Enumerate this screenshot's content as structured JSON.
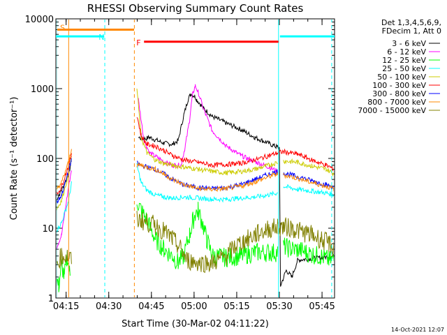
{
  "chart_data": {
    "type": "line",
    "title": "RHESSI Observing Summary Count Rates",
    "xlabel": "Start Time (30-Mar-02 04:11:22)",
    "ylabel": "Count Rate (s⁻¹ detector⁻¹)",
    "x_unit": "minutes after 04:11:22",
    "xlim": [
      0,
      98
    ],
    "ylim": [
      1,
      10000
    ],
    "yscale": "log",
    "x_ticks": [
      {
        "label": "04:15",
        "value": 3.6
      },
      {
        "label": "04:30",
        "value": 18.6
      },
      {
        "label": "04:45",
        "value": 33.6
      },
      {
        "label": "05:00",
        "value": 48.6
      },
      {
        "label": "05:15",
        "value": 63.6
      },
      {
        "label": "05:30",
        "value": 78.6
      },
      {
        "label": "05:45",
        "value": 93.6
      }
    ],
    "y_ticks": [
      {
        "label": "1",
        "value": 1
      },
      {
        "label": "10",
        "value": 10
      },
      {
        "label": "100",
        "value": 100
      },
      {
        "label": "1000",
        "value": 1000
      },
      {
        "label": "10000",
        "value": 10000
      }
    ],
    "legend": {
      "header": [
        "Det 1,3,4,5,6,9,",
        "FDecim 1, Att 0"
      ],
      "placement": "right"
    },
    "series": [
      {
        "name": "3 - 6 keV",
        "color": "#000000",
        "x": [
          0,
          2,
          4.5,
          5.5,
          6,
          28,
          29,
          31,
          33,
          38,
          41,
          43,
          45,
          46.5,
          47.5,
          48.8,
          49.5,
          52,
          55,
          60,
          65,
          70,
          74,
          77,
          78,
          78.6,
          79,
          81,
          83,
          85,
          98
        ],
        "y": [
          25,
          35,
          60,
          95,
          null,
          null,
          200,
          190,
          200,
          165,
          160,
          180,
          420,
          700,
          850,
          780,
          700,
          520,
          400,
          320,
          260,
          200,
          170,
          150,
          145,
          140,
          1.5,
          2.5,
          2,
          3.5,
          4
        ]
      },
      {
        "name": "6 - 12 keV",
        "color": "#ff00ff",
        "x": [
          0,
          2,
          4.5,
          5.5,
          6,
          28,
          29,
          31,
          33,
          38,
          41,
          44,
          45.5,
          47,
          48,
          49,
          50,
          52,
          55,
          60,
          65,
          70,
          75,
          78,
          78.6,
          79,
          98
        ],
        "y": [
          5,
          8,
          40,
          70,
          null,
          null,
          700,
          180,
          120,
          90,
          80,
          80,
          150,
          350,
          800,
          1100,
          900,
          500,
          250,
          150,
          110,
          90,
          75,
          65,
          null,
          null,
          null
        ]
      },
      {
        "name": "12 - 25 keV",
        "color": "#00ff00",
        "x": [
          0,
          1,
          2,
          3,
          4,
          5,
          6,
          28,
          28.5,
          30,
          32,
          35,
          38,
          41,
          43,
          45,
          47,
          48,
          49,
          50,
          51.5,
          53,
          55,
          60,
          65,
          70,
          75,
          78,
          78.6,
          80,
          83,
          85,
          88,
          90,
          93,
          96,
          98
        ],
        "y": [
          2,
          1.5,
          3,
          2,
          4,
          2,
          null,
          null,
          25,
          18,
          13,
          7,
          5,
          4,
          3.2,
          4,
          8,
          12,
          16,
          18,
          12,
          7,
          4,
          3.8,
          4,
          4.5,
          4.5,
          4.5,
          null,
          5.5,
          5,
          5,
          4.5,
          4.2,
          4,
          3.5,
          3.5
        ]
      },
      {
        "name": "25 - 50 keV",
        "color": "#00ffff",
        "x": [
          0,
          2,
          4.5,
          5.5,
          6,
          28,
          28.5,
          30,
          32,
          35,
          38,
          41,
          45,
          50,
          55,
          60,
          65,
          70,
          75,
          78,
          78.6,
          80,
          85,
          90,
          95,
          98
        ],
        "y": [
          9,
          12,
          25,
          45,
          null,
          null,
          80,
          45,
          35,
          30,
          28,
          27,
          28,
          27,
          26,
          26,
          27,
          28,
          30,
          32,
          null,
          40,
          36,
          34,
          32,
          30
        ]
      },
      {
        "name": "50 - 100 keV",
        "color": "#cccc00",
        "x": [
          0,
          2,
          4.5,
          5.5,
          6,
          28,
          28.5,
          30,
          32,
          35,
          38,
          41,
          45,
          50,
          55,
          60,
          65,
          70,
          75,
          78,
          78.6,
          80,
          85,
          90,
          95,
          98
        ],
        "y": [
          18,
          25,
          60,
          110,
          null,
          null,
          1000,
          200,
          120,
          95,
          85,
          80,
          75,
          70,
          65,
          62,
          65,
          70,
          80,
          88,
          null,
          92,
          88,
          78,
          70,
          60
        ]
      },
      {
        "name": "100 - 300 keV",
        "color": "#ff0000",
        "x": [
          0,
          2,
          4.5,
          5.5,
          6,
          28,
          28.5,
          30,
          32,
          35,
          38,
          41,
          45,
          50,
          55,
          60,
          65,
          70,
          75,
          78,
          80,
          85,
          90,
          95,
          98
        ],
        "y": [
          28,
          40,
          80,
          120,
          null,
          null,
          420,
          210,
          160,
          150,
          130,
          110,
          95,
          88,
          80,
          82,
          85,
          95,
          110,
          120,
          125,
          115,
          95,
          80,
          70
        ]
      },
      {
        "name": "300 - 800 keV",
        "color": "#0000ff",
        "x": [
          0,
          2,
          4.5,
          5.5,
          6,
          28,
          28.5,
          30,
          32,
          35,
          38,
          41,
          45,
          50,
          55,
          60,
          65,
          70,
          75,
          78,
          78.6,
          80,
          85,
          90,
          95,
          98
        ],
        "y": [
          22,
          30,
          65,
          100,
          null,
          null,
          85,
          80,
          75,
          70,
          60,
          50,
          42,
          38,
          37,
          38,
          42,
          50,
          60,
          65,
          null,
          62,
          55,
          48,
          42,
          38
        ]
      },
      {
        "name": "800 - 7000 keV",
        "color": "#ff8800",
        "x": [
          0,
          2,
          4.5,
          5.5,
          6,
          28,
          28.5,
          30,
          32,
          35,
          38,
          41,
          45,
          50,
          55,
          60,
          65,
          70,
          75,
          78,
          78.6,
          80,
          85,
          90,
          95,
          98
        ],
        "y": [
          35,
          45,
          90,
          140,
          null,
          null,
          80,
          80,
          75,
          70,
          60,
          50,
          42,
          37,
          36,
          37,
          40,
          46,
          55,
          60,
          null,
          58,
          52,
          45,
          40,
          36
        ]
      },
      {
        "name": "7000 - 15000 keV",
        "color": "#808000",
        "x": [
          0,
          2,
          4,
          5.5,
          6,
          28,
          28.5,
          30,
          32,
          35,
          38,
          41,
          44,
          46,
          50,
          55,
          60,
          63,
          66,
          70,
          74,
          78,
          80,
          83,
          86,
          90,
          93,
          96,
          98
        ],
        "y": [
          3,
          4,
          4,
          3.5,
          null,
          null,
          13,
          13,
          12,
          11,
          9,
          7,
          5,
          3.5,
          3.2,
          3.2,
          4,
          5.5,
          6.5,
          8,
          9.5,
          10.5,
          10.5,
          10,
          9,
          8,
          7,
          6,
          5
        ]
      }
    ],
    "annotations": [
      {
        "label": "S",
        "color": "#ff8800",
        "x_start": 0.5,
        "x_end": 27.5,
        "y": 7000
      },
      {
        "label": "N",
        "color": "#00ffff",
        "x_start": 0,
        "x_end": 17,
        "y": 5600
      },
      {
        "label": "F",
        "color": "#ff0000",
        "x_start": 31,
        "x_end": 78.3,
        "y": 4700
      },
      {
        "label": "",
        "color": "#00ffff",
        "x_start": 78.8,
        "x_end": 98,
        "y": 5600
      }
    ],
    "vertical_lines": [
      {
        "x": 0.2,
        "color": "#00ffff",
        "style": "solid"
      },
      {
        "x": 4.5,
        "color": "#ff8800",
        "style": "solid"
      },
      {
        "x": 17.2,
        "color": "#00ffff",
        "style": "dashed"
      },
      {
        "x": 27.6,
        "color": "#ff8800",
        "style": "dashed"
      },
      {
        "x": 78.3,
        "color": "#00ffff",
        "style": "solid"
      },
      {
        "x": 97,
        "color": "#00ffff",
        "style": "dashed"
      }
    ]
  },
  "footer": {
    "timestamp": "14-Oct-2021 12:07"
  }
}
